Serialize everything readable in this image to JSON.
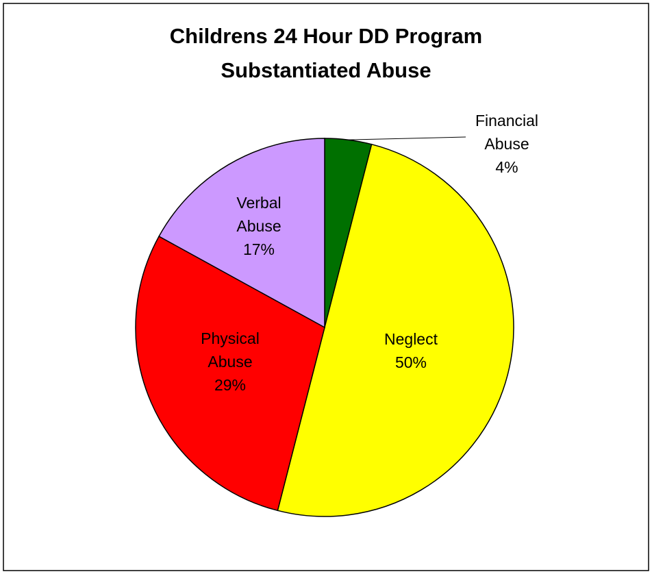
{
  "chart_data": {
    "type": "pie",
    "title": "Childrens 24 Hour DD Program\nSubstantiated Abuse",
    "categories": [
      "Financial Abuse",
      "Neglect",
      "Physical Abuse",
      "Verbal Abuse"
    ],
    "values": [
      4,
      50,
      29,
      17
    ],
    "value_labels": [
      "4%",
      "50%",
      "29%",
      "17%"
    ],
    "colors": [
      "#007000",
      "#ffff00",
      "#ff0000",
      "#cc99ff"
    ]
  }
}
